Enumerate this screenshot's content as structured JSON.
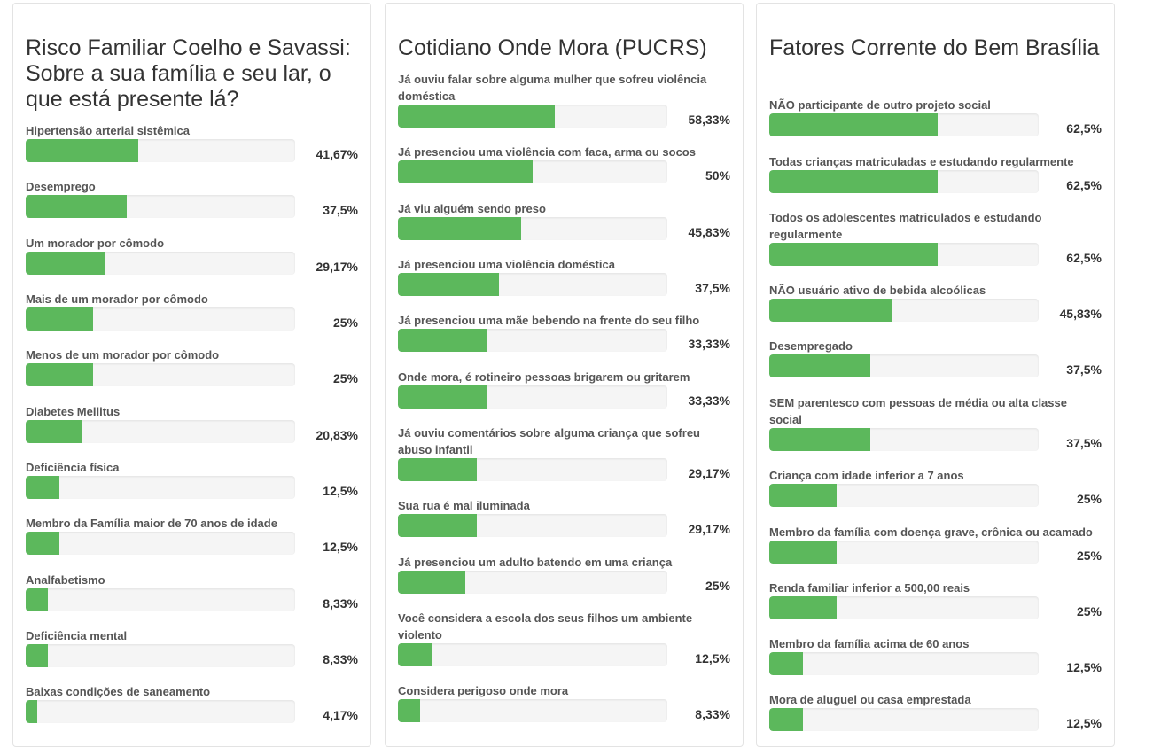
{
  "colors": {
    "bar": "#5cb85c",
    "track": "#f5f5f5"
  },
  "chart_data": [
    {
      "type": "bar",
      "orientation": "horizontal",
      "title": "Risco Familiar Coelho e Savassi: Sobre a sua família e seu lar, o que está presente lá?",
      "xlim": [
        0,
        100
      ],
      "categories": [
        "Hipertensão arterial sistêmica",
        "Desemprego",
        "Um morador por cômodo",
        "Mais de um morador por cômodo",
        "Menos de um morador por cômodo",
        "Diabetes Mellitus",
        "Deficiência física",
        "Membro da Família maior de 70 anos de idade",
        "Analfabetismo",
        "Deficiência mental",
        "Baixas condições de saneamento"
      ],
      "values": [
        41.67,
        37.5,
        29.17,
        25,
        25,
        20.83,
        12.5,
        12.5,
        8.33,
        8.33,
        4.17
      ],
      "value_labels": [
        "41,67%",
        "37,5%",
        "29,17%",
        "25%",
        "25%",
        "20,83%",
        "12,5%",
        "12,5%",
        "8,33%",
        "8,33%",
        "4,17%"
      ]
    },
    {
      "type": "bar",
      "orientation": "horizontal",
      "title": "Cotidiano Onde Mora (PUCRS)",
      "xlim": [
        0,
        100
      ],
      "categories": [
        "Já ouviu falar sobre alguma mulher que sofreu violência doméstica",
        "Já presenciou uma violência com faca, arma ou socos",
        "Já viu alguém sendo preso",
        "Já presenciou uma violência doméstica",
        "Já presenciou uma mãe bebendo na frente do seu filho",
        "Onde mora, é rotineiro pessoas brigarem ou gritarem",
        "Já ouviu comentários sobre alguma criança que sofreu abuso infantil",
        "Sua rua é mal iluminada",
        "Já presenciou um adulto batendo em uma criança",
        "Você considera a escola dos seus filhos um ambiente violento",
        "Considera perigoso onde mora"
      ],
      "values": [
        58.33,
        50,
        45.83,
        37.5,
        33.33,
        33.33,
        29.17,
        29.17,
        25,
        12.5,
        8.33
      ],
      "value_labels": [
        "58,33%",
        "50%",
        "45,83%",
        "37,5%",
        "33,33%",
        "33,33%",
        "29,17%",
        "29,17%",
        "25%",
        "12,5%",
        "8,33%"
      ]
    },
    {
      "type": "bar",
      "orientation": "horizontal",
      "title": "Fatores Corrente do Bem Brasília",
      "xlim": [
        0,
        100
      ],
      "categories": [
        "NÃO participante de outro projeto social",
        "Todas crianças matriculadas e estudando regularmente",
        "Todos os adolescentes matriculados e estudando regularmente",
        "NÃO usuário ativo de bebida alcoólicas",
        "Desempregado",
        "SEM parentesco com pessoas de média ou alta classe social",
        "Criança com idade inferior a 7 anos",
        "Membro da família com doença grave, crônica ou acamado",
        "Renda familiar inferior a 500,00 reais",
        "Membro da família acima de 60 anos",
        "Mora de aluguel ou casa emprestada"
      ],
      "values": [
        62.5,
        62.5,
        62.5,
        45.83,
        37.5,
        37.5,
        25,
        25,
        25,
        12.5,
        12.5
      ],
      "value_labels": [
        "62,5%",
        "62,5%",
        "62,5%",
        "45,83%",
        "37,5%",
        "37,5%",
        "25%",
        "25%",
        "25%",
        "12,5%",
        "12,5%"
      ]
    }
  ]
}
